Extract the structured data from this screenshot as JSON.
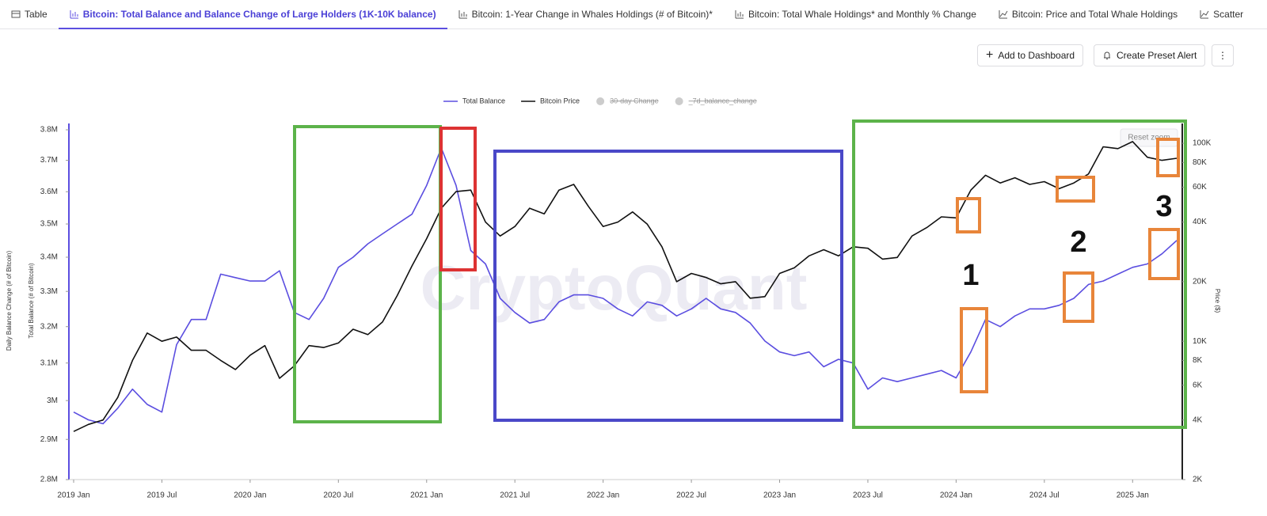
{
  "tabs": [
    "Table",
    "Bitcoin: Total Balance and Balance Change of Large Holders (1K-10K balance)",
    "Bitcoin: 1-Year Change in Whales Holdings (# of Bitcoin)*",
    "Bitcoin: Total Whale Holdings* and Monthly % Change",
    "Bitcoin: Price and Total Whale Holdings",
    "Scatter"
  ],
  "buttons": [
    "Add to Dashboard",
    "Create Preset Alert"
  ],
  "chart_button": "Reset zoom",
  "chart_data": {
    "type": "line",
    "watermark": "CryptoQuant",
    "y_label": "Total Balance (# of Bitcoin)",
    "y_label_secondary": "Daily Balance Change (# of Bitcoin)",
    "y2_label": "Price ($)",
    "annotations": [
      "1",
      "2",
      "3"
    ],
    "hidden_series": [
      "30-day Change",
      "_7d_balance_change"
    ],
    "x": [
      "2019-01",
      "2019-02",
      "2019-03",
      "2019-04",
      "2019-05",
      "2019-06",
      "2019-07",
      "2019-08",
      "2019-09",
      "2019-10",
      "2019-11",
      "2019-12",
      "2020-01",
      "2020-02",
      "2020-03",
      "2020-04",
      "2020-05",
      "2020-06",
      "2020-07",
      "2020-08",
      "2020-09",
      "2020-10",
      "2020-11",
      "2020-12",
      "2021-01",
      "2021-02",
      "2021-03",
      "2021-04",
      "2021-05",
      "2021-06",
      "2021-07",
      "2021-08",
      "2021-09",
      "2021-10",
      "2021-11",
      "2021-12",
      "2022-01",
      "2022-02",
      "2022-03",
      "2022-04",
      "2022-05",
      "2022-06",
      "2022-07",
      "2022-08",
      "2022-09",
      "2022-10",
      "2022-11",
      "2022-12",
      "2023-01",
      "2023-02",
      "2023-03",
      "2023-04",
      "2023-05",
      "2023-06",
      "2023-07",
      "2023-08",
      "2023-09",
      "2023-10",
      "2023-11",
      "2023-12",
      "2024-01",
      "2024-02",
      "2024-03",
      "2024-04",
      "2024-05",
      "2024-06",
      "2024-07",
      "2024-08",
      "2024-09",
      "2024-10",
      "2024-11",
      "2024-12",
      "2025-01",
      "2025-02",
      "2025-03",
      "2025-04"
    ],
    "series": [
      {
        "name": "Total Balance",
        "color": "#5b4ee0",
        "values": [
          2970000,
          2950000,
          2940000,
          2980000,
          3030000,
          2990000,
          2970000,
          3150000,
          3220000,
          3220000,
          3350000,
          3340000,
          3330000,
          3330000,
          3360000,
          3240000,
          3220000,
          3280000,
          3370000,
          3400000,
          3440000,
          3470000,
          3500000,
          3530000,
          3620000,
          3740000,
          3620000,
          3420000,
          3380000,
          3280000,
          3240000,
          3210000,
          3220000,
          3270000,
          3290000,
          3290000,
          3280000,
          3250000,
          3230000,
          3270000,
          3260000,
          3230000,
          3250000,
          3280000,
          3250000,
          3240000,
          3210000,
          3160000,
          3130000,
          3120000,
          3130000,
          3090000,
          3110000,
          3100000,
          3030000,
          3060000,
          3050000,
          3060000,
          3070000,
          3080000,
          3060000,
          3130000,
          3220000,
          3200000,
          3230000,
          3250000,
          3250000,
          3260000,
          3280000,
          3320000,
          3330000,
          3350000,
          3370000,
          3380000,
          3410000,
          3450000
        ]
      },
      {
        "name": "Bitcoin Price",
        "color": "#111111",
        "axis": "y2",
        "values": [
          3500,
          3800,
          4000,
          5200,
          8000,
          11000,
          10000,
          10500,
          9000,
          9000,
          8000,
          7200,
          8500,
          9500,
          6500,
          7500,
          9500,
          9300,
          9800,
          11500,
          10800,
          12500,
          17000,
          24000,
          33000,
          47000,
          57000,
          58000,
          40000,
          34000,
          38000,
          47000,
          44000,
          58000,
          62000,
          48000,
          38000,
          40000,
          45000,
          39000,
          30000,
          20000,
          22000,
          21000,
          19500,
          20000,
          16500,
          16800,
          22000,
          23500,
          27000,
          29000,
          27000,
          30000,
          29500,
          26000,
          26500,
          34000,
          37500,
          42500,
          42000,
          58000,
          69000,
          63000,
          67000,
          62000,
          64000,
          59000,
          63000,
          70000,
          96000,
          94000,
          102000,
          85000,
          82000,
          84000
        ]
      }
    ],
    "xlim": [
      "2019-01",
      "2025-04"
    ],
    "xticks": [
      {
        "value": "2019-01",
        "label": "2019 Jan"
      },
      {
        "value": "2019-07",
        "label": "2019 Jul"
      },
      {
        "value": "2020-01",
        "label": "2020 Jan"
      },
      {
        "value": "2020-07",
        "label": "2020 Jul"
      },
      {
        "value": "2021-01",
        "label": "2021 Jan"
      },
      {
        "value": "2021-07",
        "label": "2021 Jul"
      },
      {
        "value": "2022-01",
        "label": "2022 Jan"
      },
      {
        "value": "2022-07",
        "label": "2022 Jul"
      },
      {
        "value": "2023-01",
        "label": "2023 Jan"
      },
      {
        "value": "2023-07",
        "label": "2023 Jul"
      },
      {
        "value": "2024-01",
        "label": "2024 Jan"
      },
      {
        "value": "2024-07",
        "label": "2024 Jul"
      },
      {
        "value": "2025-01",
        "label": "2025 Jan"
      }
    ],
    "ylim": [
      2800000,
      3800000
    ],
    "ylog": true,
    "yticks": [
      {
        "value": 2800000,
        "label": "2.8M"
      },
      {
        "value": 2900000,
        "label": "2.9M"
      },
      {
        "value": 3000000,
        "label": "3M"
      },
      {
        "value": 3100000,
        "label": "3.1M"
      },
      {
        "value": 3200000,
        "label": "3.2M"
      },
      {
        "value": 3300000,
        "label": "3.3M"
      },
      {
        "value": 3400000,
        "label": "3.4M"
      },
      {
        "value": 3500000,
        "label": "3.5M"
      },
      {
        "value": 3600000,
        "label": "3.6M"
      },
      {
        "value": 3700000,
        "label": "3.7M"
      },
      {
        "value": 3800000,
        "label": "3.8M"
      }
    ],
    "y2lim": [
      2000,
      117000
    ],
    "y2log": true,
    "y2ticks": [
      {
        "value": 2000,
        "label": "2K"
      },
      {
        "value": 4000,
        "label": "4K"
      },
      {
        "value": 6000,
        "label": "6K"
      },
      {
        "value": 8000,
        "label": "8K"
      },
      {
        "value": 10000,
        "label": "10K"
      },
      {
        "value": 20000,
        "label": "20K"
      },
      {
        "value": 40000,
        "label": "40K"
      },
      {
        "value": 60000,
        "label": "60K"
      },
      {
        "value": 80000,
        "label": "80K"
      },
      {
        "value": 100000,
        "label": "100K"
      }
    ],
    "grid": false
  }
}
